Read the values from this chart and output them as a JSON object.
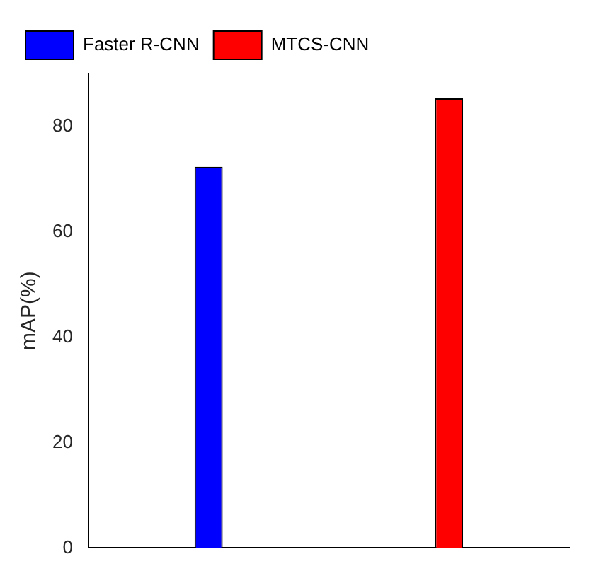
{
  "chart_data": {
    "type": "bar",
    "ylabel": "mAP(%)",
    "categories": [
      null,
      null
    ],
    "series": [
      {
        "name": "Faster R-CNN",
        "color": "#0000ff",
        "values": [
          72.3,
          null
        ]
      },
      {
        "name": "MTCS-CNN",
        "color": "#ff0000",
        "values": [
          null,
          85.3
        ]
      }
    ],
    "ylim": [
      0,
      90
    ],
    "yticks": [
      0,
      20,
      40,
      60,
      80
    ],
    "grid": false,
    "legend": "top left"
  }
}
